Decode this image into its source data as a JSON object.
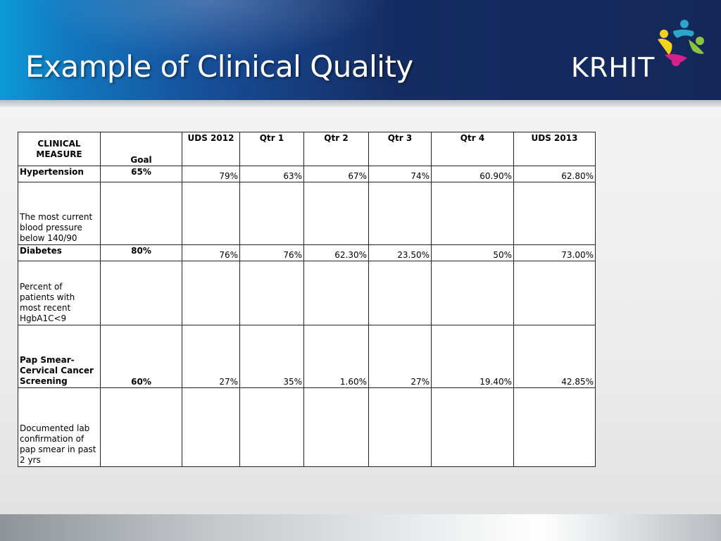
{
  "slide": {
    "title": "Example of Clinical Quality",
    "brand": "KRHIT",
    "colors": {
      "header_dark": "#13275a",
      "header_light": "#0a9bd7",
      "logo_yellow": "#f2d21b",
      "logo_teal": "#2aa7c9",
      "logo_green": "#8cc43f",
      "logo_pink": "#d6208a"
    }
  },
  "table": {
    "headers": {
      "measure_line1": "CLINICAL",
      "measure_line2": "MEASURE",
      "goal": "Goal",
      "columns": [
        "UDS 2012",
        "Qtr 1",
        "Qtr 2",
        "Qtr 3",
        "Qtr 4",
        "UDS 2013"
      ]
    },
    "rows": [
      {
        "name": "Hypertension",
        "goal": "65%",
        "values": [
          "79%",
          "63%",
          "67%",
          "74%",
          "60.90%",
          "62.80%"
        ],
        "description": "The most current blood pressure below 140/90"
      },
      {
        "name": "Diabetes",
        "goal": "80%",
        "values": [
          "76%",
          "76%",
          "62.30%",
          "23.50%",
          "50%",
          "73.00%"
        ],
        "description": "Percent of patients with most recent HgbA1C<9"
      },
      {
        "name": "Pap Smear- Cervical Cancer Screening",
        "goal": "60%",
        "values": [
          "27%",
          "35%",
          "1.60%",
          "27%",
          "19.40%",
          "42.85%"
        ],
        "description": "Documented lab confirmation of pap smear in past 2 yrs"
      }
    ]
  }
}
